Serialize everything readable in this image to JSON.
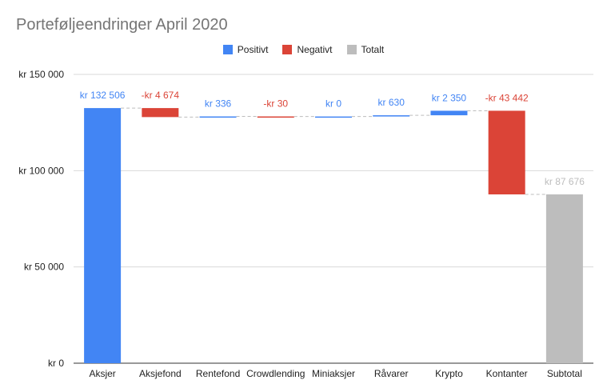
{
  "chart_data": {
    "type": "bar",
    "subtype": "waterfall",
    "title": "Porteføljeendringer April 2020",
    "categories": [
      "Aksjer",
      "Aksjefond",
      "Rentefond",
      "Crowdlending",
      "Miniaksjer",
      "Råvarer",
      "Krypto",
      "Kontanter",
      "Subtotal"
    ],
    "values": [
      132506,
      -4674,
      336,
      -30,
      0,
      630,
      2350,
      -43442,
      87676
    ],
    "kinds": [
      "positive",
      "negative",
      "positive",
      "negative",
      "positive",
      "positive",
      "positive",
      "negative",
      "total"
    ],
    "data_labels": [
      "kr  132 506",
      "-kr  4 674",
      "kr  336",
      "-kr  30",
      "kr  0",
      "kr  630",
      "kr  2 350",
      "-kr  43 442",
      "kr  87 676"
    ],
    "ylim": [
      0,
      150000
    ],
    "yticks": [
      0,
      50000,
      100000,
      150000
    ],
    "ytick_labels": [
      "kr   0",
      "kr  50 000",
      "kr  100 000",
      "kr  150 000"
    ],
    "legend": [
      {
        "label": "Positivt",
        "color": "#4285f4"
      },
      {
        "label": "Negativt",
        "color": "#db4437"
      },
      {
        "label": "Totalt",
        "color": "#bdbdbd"
      }
    ],
    "colors": {
      "positive": "#4285f4",
      "negative": "#db4437",
      "total": "#bdbdbd"
    },
    "legend_position": "top",
    "grid": true
  }
}
